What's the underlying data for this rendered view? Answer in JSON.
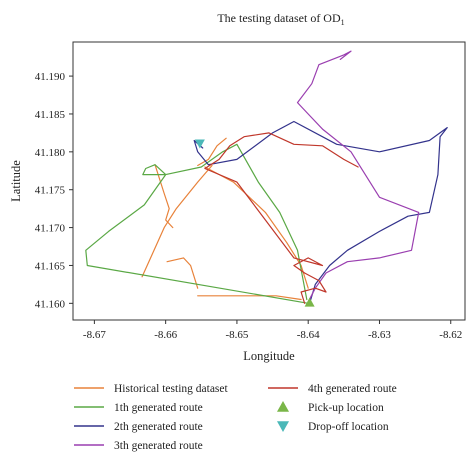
{
  "chart_data": {
    "type": "line",
    "title": "The testing dataset of OD",
    "title_subscript": "1",
    "xlabel": "Longitude",
    "ylabel": "Latitude",
    "xlim": [
      -8.673,
      -8.618
    ],
    "ylim": [
      41.1578,
      41.1945
    ],
    "x_ticks": [
      -8.67,
      -8.66,
      -8.65,
      -8.64,
      -8.63,
      -8.62
    ],
    "x_tick_labels": [
      "-8.67",
      "-8.66",
      "-8.65",
      "-8.64",
      "-8.63",
      "-8.62"
    ],
    "y_ticks": [
      41.16,
      41.165,
      41.17,
      41.175,
      41.18,
      41.185,
      41.19
    ],
    "y_tick_labels": [
      "41.160",
      "41.165",
      "41.170",
      "41.175",
      "41.180",
      "41.185",
      "41.190"
    ],
    "grid": false,
    "legend_position": "bottom",
    "series": [
      {
        "name": "Historical testing dataset",
        "color": "#e8823a",
        "paths": [
          [
            [
              -8.6633,
              41.1635
            ],
            [
              -8.6602,
              41.17
            ],
            [
              -8.6585,
              41.1725
            ],
            [
              -8.6555,
              41.176
            ],
            [
              -8.6535,
              41.1782
            ]
          ],
          [
            [
              -8.6598,
              41.1655
            ],
            [
              -8.6575,
              41.166
            ],
            [
              -8.6565,
              41.165
            ],
            [
              -8.6555,
              41.162
            ]
          ],
          [
            [
              -8.6615,
              41.1783
            ],
            [
              -8.6602,
              41.1745
            ],
            [
              -8.6595,
              41.1725
            ],
            [
              -8.66,
              41.171
            ],
            [
              -8.659,
              41.17
            ]
          ],
          [
            [
              -8.6555,
              41.161
            ],
            [
              -8.65,
              41.161
            ],
            [
              -8.6445,
              41.161
            ],
            [
              -8.641,
              41.1605
            ]
          ],
          [
            [
              -8.6555,
              41.1782
            ],
            [
              -8.654,
              41.179
            ],
            [
              -8.6528,
              41.1808
            ],
            [
              -8.6515,
              41.1818
            ]
          ],
          [
            [
              -8.6545,
              41.178
            ],
            [
              -8.6505,
              41.176
            ],
            [
              -8.646,
              41.172
            ],
            [
              -8.643,
              41.168
            ],
            [
              -8.641,
              41.165
            ],
            [
              -8.64,
              41.162
            ]
          ]
        ]
      },
      {
        "name": "1th generated route",
        "color": "#5aa845",
        "paths": [
          [
            [
              -8.64,
              41.16
            ],
            [
              -8.671,
              41.165
            ],
            [
              -8.6712,
              41.167
            ],
            [
              -8.668,
              41.1695
            ],
            [
              -8.663,
              41.173
            ],
            [
              -8.66,
              41.177
            ],
            [
              -8.6615,
              41.1783
            ],
            [
              -8.6628,
              41.1778
            ],
            [
              -8.6632,
              41.177
            ],
            [
              -8.66,
              41.177
            ],
            [
              -8.655,
              41.178
            ],
            [
              -8.652,
              41.18
            ],
            [
              -8.65,
              41.181
            ],
            [
              -8.647,
              41.176
            ],
            [
              -8.644,
              41.172
            ],
            [
              -8.6415,
              41.167
            ],
            [
              -8.6408,
              41.1635
            ],
            [
              -8.6402,
              41.1605
            ]
          ]
        ]
      },
      {
        "name": "2th generated route",
        "color": "#33338c",
        "paths": [
          [
            [
              -8.6398,
              41.16
            ],
            [
              -8.639,
              41.1625
            ],
            [
              -8.637,
              41.165
            ],
            [
              -8.6345,
              41.167
            ],
            [
              -8.63,
              41.1695
            ],
            [
              -8.626,
              41.1715
            ],
            [
              -8.623,
              41.172
            ],
            [
              -8.6218,
              41.177
            ],
            [
              -8.6215,
              41.182
            ],
            [
              -8.6205,
              41.1832
            ],
            [
              -8.623,
              41.1815
            ],
            [
              -8.63,
              41.18
            ],
            [
              -8.636,
              41.181
            ],
            [
              -8.642,
              41.184
            ],
            [
              -8.645,
              41.1825
            ],
            [
              -8.65,
              41.179
            ],
            [
              -8.654,
              41.1783
            ],
            [
              -8.6555,
              41.18
            ],
            [
              -8.656,
              41.1815
            ],
            [
              -8.6548,
              41.1805
            ]
          ]
        ]
      },
      {
        "name": "3th generated route",
        "color": "#9a3fb0",
        "paths": [
          [
            [
              -8.64,
              41.1602
            ],
            [
              -8.639,
              41.162
            ],
            [
              -8.6375,
              41.164
            ],
            [
              -8.6345,
              41.1655
            ],
            [
              -8.63,
              41.166
            ],
            [
              -8.6255,
              41.167
            ],
            [
              -8.6245,
              41.172
            ],
            [
              -8.63,
              41.174
            ],
            [
              -8.634,
              41.18
            ],
            [
              -8.638,
              41.183
            ],
            [
              -8.64,
              41.185
            ],
            [
              -8.6415,
              41.1865
            ],
            [
              -8.6395,
              41.189
            ],
            [
              -8.6385,
              41.1915
            ],
            [
              -8.635,
              41.1928
            ],
            [
              -8.634,
              41.1933
            ],
            [
              -8.6355,
              41.1922
            ]
          ]
        ]
      },
      {
        "name": "4th generated route",
        "color": "#c0372b",
        "paths": [
          [
            [
              -8.6405,
              41.16
            ],
            [
              -8.641,
              41.1615
            ],
            [
              -8.639,
              41.162
            ],
            [
              -8.6375,
              41.1615
            ],
            [
              -8.6385,
              41.163
            ],
            [
              -8.6405,
              41.164
            ],
            [
              -8.642,
              41.165
            ],
            [
              -8.64,
              41.166
            ],
            [
              -8.638,
              41.165
            ],
            [
              -8.642,
              41.166
            ],
            [
              -8.646,
              41.171
            ],
            [
              -8.65,
              41.176
            ],
            [
              -8.6545,
              41.1778
            ],
            [
              -8.6525,
              41.179
            ],
            [
              -8.651,
              41.1808
            ],
            [
              -8.649,
              41.182
            ],
            [
              -8.6455,
              41.1825
            ],
            [
              -8.642,
              41.181
            ],
            [
              -8.638,
              41.1808
            ],
            [
              -8.635,
              41.179
            ],
            [
              -8.633,
              41.178
            ]
          ]
        ]
      }
    ],
    "markers": [
      {
        "name": "Pick-up location",
        "color": "#7ab648",
        "shape": "triangle-up",
        "x": -8.6398,
        "y": 41.1601
      },
      {
        "name": "Drop-off location",
        "color": "#4bb8b8",
        "shape": "triangle-down",
        "x": -8.6552,
        "y": 41.1811
      }
    ],
    "legend": [
      {
        "label": "Historical testing dataset",
        "color": "#e8823a",
        "kind": "line"
      },
      {
        "label": "1th generated route",
        "color": "#5aa845",
        "kind": "line"
      },
      {
        "label": "2th generated route",
        "color": "#33338c",
        "kind": "line"
      },
      {
        "label": "3th generated route",
        "color": "#9a3fb0",
        "kind": "line"
      },
      {
        "label": "4th generated route",
        "color": "#c0372b",
        "kind": "line"
      },
      {
        "label": "Pick-up location",
        "color": "#7ab648",
        "kind": "triangle-up"
      },
      {
        "label": "Drop-off location",
        "color": "#4bb8b8",
        "kind": "triangle-down"
      }
    ]
  }
}
